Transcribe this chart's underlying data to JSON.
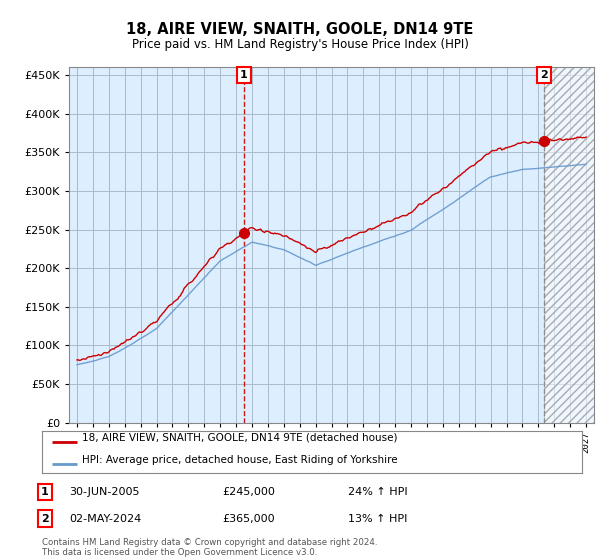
{
  "title": "18, AIRE VIEW, SNAITH, GOOLE, DN14 9TE",
  "subtitle": "Price paid vs. HM Land Registry's House Price Index (HPI)",
  "legend_line1": "18, AIRE VIEW, SNAITH, GOOLE, DN14 9TE (detached house)",
  "legend_line2": "HPI: Average price, detached house, East Riding of Yorkshire",
  "annotation1_date": "30-JUN-2005",
  "annotation1_price": 245000,
  "annotation1_price_str": "£245,000",
  "annotation1_pct": "24% ↑ HPI",
  "annotation2_date": "02-MAY-2024",
  "annotation2_price": 365000,
  "annotation2_price_str": "£365,000",
  "annotation2_pct": "13% ↑ HPI",
  "footer": "Contains HM Land Registry data © Crown copyright and database right 2024.\nThis data is licensed under the Open Government Licence v3.0.",
  "red_color": "#cc0000",
  "blue_color": "#6699cc",
  "plot_bg_color": "#ddeeff",
  "fig_bg_color": "#ffffff",
  "grid_color": "#aabbcc",
  "ylim": [
    0,
    460000
  ],
  "yticks": [
    0,
    50000,
    100000,
    150000,
    200000,
    250000,
    300000,
    350000,
    400000,
    450000
  ],
  "xlim_start": 1994.5,
  "xlim_end": 2027.5,
  "t1_year": 2005.5,
  "t2_year": 2024.33
}
